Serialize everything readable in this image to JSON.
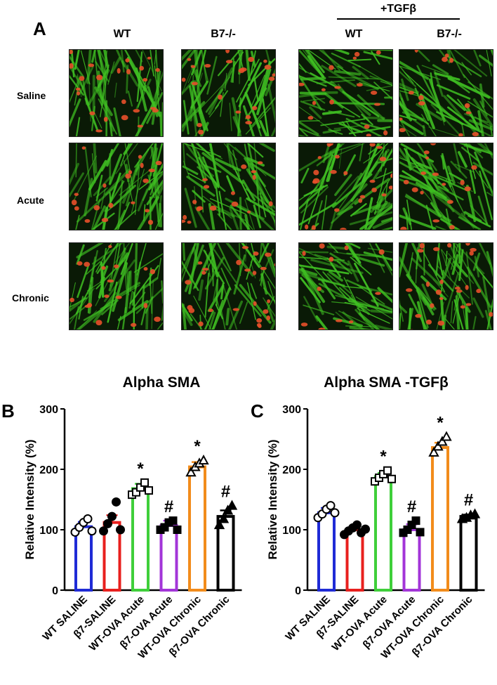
{
  "panel_a": {
    "letter": "A",
    "treatment_label": "+TGFβ",
    "columns": [
      "WT",
      "B7-/-",
      "WT",
      "B7-/-"
    ],
    "rows": [
      "Saline",
      "Acute",
      "Chronic"
    ],
    "colors": {
      "actin": "#3fbf22",
      "nuclei": "#e8502a",
      "background": "#0a1a06"
    }
  },
  "chart_data": [
    {
      "panel": "B",
      "type": "bar",
      "title": "Alpha SMA",
      "xlabel": "",
      "ylabel": "Relative Intensity (%)",
      "ylim": [
        0,
        300
      ],
      "yticks": [
        0,
        100,
        200,
        300
      ],
      "categories": [
        "WT SALINE",
        "β7-SALINE",
        "WT-OVA Acute",
        "β7-OVA Acute",
        "WT-OVA Chronic",
        "β7-OVA Chronic"
      ],
      "values": [
        105,
        112,
        168,
        107,
        204,
        122
      ],
      "errors": [
        8,
        12,
        8,
        8,
        8,
        10
      ],
      "bar_colors": [
        "#1f2bd6",
        "#e8201e",
        "#3fcf3a",
        "#a335d8",
        "#f28c1b",
        "#000000"
      ],
      "markers": [
        "circle-open",
        "circle-filled",
        "square-open",
        "square-filled",
        "triangle-open",
        "triangle-filled"
      ],
      "points": [
        [
          96,
          104,
          112,
          118,
          98
        ],
        [
          98,
          110,
          122,
          146,
          100
        ],
        [
          158,
          162,
          170,
          178,
          165
        ],
        [
          100,
          104,
          112,
          115,
          100
        ],
        [
          195,
          204,
          210,
          215
        ],
        [
          108,
          118,
          132,
          140
        ]
      ],
      "annotations": [
        "",
        "",
        "*",
        "#",
        "*",
        "#"
      ]
    },
    {
      "panel": "C",
      "type": "bar",
      "title": "Alpha SMA -TGFβ",
      "xlabel": "",
      "ylabel": "Relative Intensity (%)",
      "ylim": [
        0,
        300
      ],
      "yticks": [
        0,
        100,
        200,
        300
      ],
      "categories": [
        "WT SALINE",
        "β7-SALINE",
        "WT-OVA Acute",
        "β7-OVA Acute",
        "WT-OVA Chronic",
        "β7-OVA Chronic"
      ],
      "values": [
        128,
        100,
        188,
        100,
        236,
        122
      ],
      "errors": [
        8,
        5,
        6,
        9,
        8,
        3
      ],
      "bar_colors": [
        "#1f2bd6",
        "#e8201e",
        "#3fcf3a",
        "#a335d8",
        "#f28c1b",
        "#000000"
      ],
      "markers": [
        "circle-open",
        "circle-filled",
        "square-open",
        "square-filled",
        "triangle-open",
        "triangle-filled"
      ],
      "points": [
        [
          120,
          126,
          134,
          140,
          128
        ],
        [
          92,
          98,
          103,
          108,
          95,
          101
        ],
        [
          180,
          186,
          192,
          198,
          184
        ],
        [
          95,
          100,
          108,
          115,
          96
        ],
        [
          228,
          238,
          246,
          254
        ],
        [
          118,
          120,
          124,
          126
        ]
      ],
      "annotations": [
        "",
        "",
        "*",
        "#",
        "*",
        "#"
      ]
    }
  ]
}
